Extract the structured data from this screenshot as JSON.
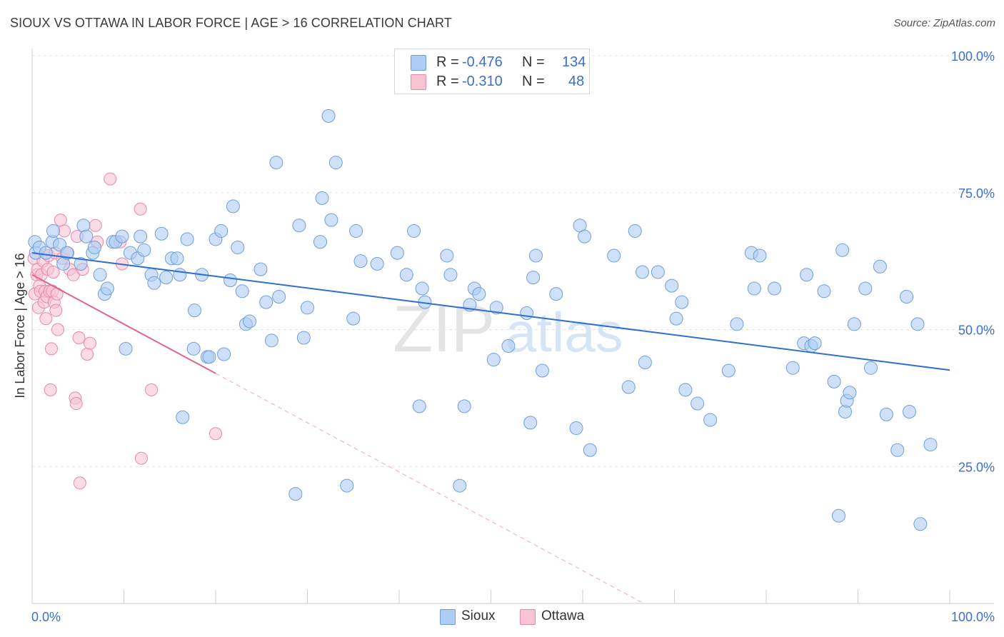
{
  "title": "SIOUX VS OTTAWA IN LABOR FORCE | AGE > 16 CORRELATION CHART",
  "source": "Source: ZipAtlas.com",
  "watermark": {
    "zip": "ZIP",
    "atlas": "atlas"
  },
  "legend": {
    "rows": [
      {
        "r_label": "R =",
        "r_value": "-0.476",
        "n_label": "N =",
        "n_value": "134",
        "color": "#aecdf4",
        "border": "#6f9fd8"
      },
      {
        "r_label": "R =",
        "r_value": "-0.310",
        "n_label": "N =",
        "n_value": "48",
        "color": "#f8c3d3",
        "border": "#e58aa8"
      }
    ]
  },
  "bottom_legend": [
    {
      "label": "Sioux",
      "color": "#aecdf4",
      "border": "#6f9fd8"
    },
    {
      "label": "Ottawa",
      "color": "#f8c3d3",
      "border": "#e58aa8"
    }
  ],
  "chart_data": {
    "type": "scatter",
    "title": "SIOUX VS OTTAWA IN LABOR FORCE | AGE > 16 CORRELATION CHART",
    "xlabel": "",
    "ylabel": "In Labor Force | Age > 16",
    "xlim": [
      0,
      100
    ],
    "ylim": [
      0,
      100
    ],
    "x_tick_labels": [
      "0.0%",
      "100.0%"
    ],
    "y_ticks": [
      25,
      50,
      75,
      100
    ],
    "y_tick_labels": [
      "25.0%",
      "50.0%",
      "75.0%",
      "100.0%"
    ],
    "grid": true,
    "legend_position": "top-center",
    "series": [
      {
        "name": "Sioux",
        "color": "#aecdf4",
        "stroke": "#6f9fd8",
        "trend": {
          "x0": 0,
          "y0": 64.0,
          "x1": 100,
          "y1": 42.6,
          "color": "#2e6fd0"
        },
        "points": [
          [
            0.3,
            66
          ],
          [
            0.4,
            64
          ],
          [
            0.8,
            65
          ],
          [
            1.5,
            64
          ],
          [
            2.2,
            66
          ],
          [
            2.3,
            68
          ],
          [
            3.0,
            65.5
          ],
          [
            3.4,
            62
          ],
          [
            3.8,
            64
          ],
          [
            5.3,
            62
          ],
          [
            5.6,
            69
          ],
          [
            5.9,
            67
          ],
          [
            6.6,
            64
          ],
          [
            6.8,
            65
          ],
          [
            7.4,
            60
          ],
          [
            7.9,
            56.5
          ],
          [
            8.2,
            57.5
          ],
          [
            8.8,
            66
          ],
          [
            9.1,
            66
          ],
          [
            9.8,
            67
          ],
          [
            10.2,
            46.5
          ],
          [
            10.7,
            64
          ],
          [
            11.5,
            63
          ],
          [
            11.8,
            67
          ],
          [
            12.2,
            64.5
          ],
          [
            13.0,
            60
          ],
          [
            13.3,
            58.5
          ],
          [
            14.1,
            67.5
          ],
          [
            14.6,
            59.5
          ],
          [
            15.2,
            63
          ],
          [
            15.8,
            63
          ],
          [
            16.1,
            60
          ],
          [
            16.4,
            34
          ],
          [
            16.9,
            66.5
          ],
          [
            17.7,
            53.5
          ],
          [
            17.6,
            46.5
          ],
          [
            18.5,
            60
          ],
          [
            19.1,
            45
          ],
          [
            19.3,
            45
          ],
          [
            20.0,
            66.5
          ],
          [
            20.6,
            68
          ],
          [
            20.9,
            45.5
          ],
          [
            21.6,
            59
          ],
          [
            21.9,
            72.5
          ],
          [
            22.4,
            65
          ],
          [
            22.9,
            57
          ],
          [
            23.3,
            51
          ],
          [
            23.7,
            51.5
          ],
          [
            24.9,
            61
          ],
          [
            25.5,
            55
          ],
          [
            26.1,
            48
          ],
          [
            26.6,
            80.5
          ],
          [
            26.9,
            56
          ],
          [
            28.7,
            20
          ],
          [
            29.1,
            69
          ],
          [
            29.6,
            48.5
          ],
          [
            30.0,
            54
          ],
          [
            31.4,
            66
          ],
          [
            31.6,
            74
          ],
          [
            32.3,
            89
          ],
          [
            32.6,
            70
          ],
          [
            33.1,
            80.5
          ],
          [
            34.3,
            21.5
          ],
          [
            35.0,
            52
          ],
          [
            35.3,
            68
          ],
          [
            35.8,
            62.5
          ],
          [
            37.6,
            62
          ],
          [
            39.8,
            64
          ],
          [
            40.8,
            60
          ],
          [
            41.6,
            68
          ],
          [
            42.2,
            36
          ],
          [
            42.5,
            57.5
          ],
          [
            42.8,
            55
          ],
          [
            45.2,
            63.5
          ],
          [
            45.6,
            60
          ],
          [
            46.6,
            21.5
          ],
          [
            47.1,
            36
          ],
          [
            47.7,
            54.5
          ],
          [
            48.2,
            57.5
          ],
          [
            48.7,
            56.5
          ],
          [
            50.3,
            44.5
          ],
          [
            50.6,
            54
          ],
          [
            51.9,
            47
          ],
          [
            53.9,
            53
          ],
          [
            54.3,
            33
          ],
          [
            54.6,
            59.5
          ],
          [
            54.9,
            63.5
          ],
          [
            55.6,
            42.5
          ],
          [
            57.1,
            56.5
          ],
          [
            59.3,
            32
          ],
          [
            59.7,
            69
          ],
          [
            60.2,
            67
          ],
          [
            60.8,
            28
          ],
          [
            63.4,
            63.5
          ],
          [
            65.0,
            39.5
          ],
          [
            65.7,
            68
          ],
          [
            66.5,
            60.5
          ],
          [
            66.8,
            44
          ],
          [
            68.2,
            60.5
          ],
          [
            69.7,
            58
          ],
          [
            70.2,
            52
          ],
          [
            70.8,
            55
          ],
          [
            71.2,
            39
          ],
          [
            72.5,
            36.5
          ],
          [
            73.9,
            33.5
          ],
          [
            75.9,
            42.5
          ],
          [
            76.8,
            51
          ],
          [
            78.4,
            64
          ],
          [
            78.7,
            57.5
          ],
          [
            79.3,
            63.5
          ],
          [
            80.9,
            57.5
          ],
          [
            82.9,
            43
          ],
          [
            84.1,
            47.5
          ],
          [
            84.4,
            60
          ],
          [
            84.9,
            47
          ],
          [
            85.3,
            47.5
          ],
          [
            86.3,
            57
          ],
          [
            87.4,
            40.5
          ],
          [
            88.3,
            64.5
          ],
          [
            88.6,
            35
          ],
          [
            88.8,
            37
          ],
          [
            89.1,
            38.5
          ],
          [
            89.6,
            51
          ],
          [
            90.8,
            57.5
          ],
          [
            91.4,
            43
          ],
          [
            92.4,
            61.5
          ],
          [
            93.1,
            34.5
          ],
          [
            94.3,
            28
          ],
          [
            95.3,
            56
          ],
          [
            95.6,
            35
          ],
          [
            96.5,
            51
          ],
          [
            96.8,
            14.5
          ],
          [
            97.9,
            29
          ],
          [
            87.9,
            16
          ]
        ]
      },
      {
        "name": "Ottawa",
        "color": "#f8c3d3",
        "stroke": "#e58aa8",
        "trend": {
          "x0": 0,
          "y0": 60.0,
          "x1": 20,
          "y1": 42.0,
          "color": "#e0648c"
        },
        "trend_extension": {
          "x0": 20,
          "y0": 42.0,
          "x1": 100,
          "y1": -30.0
        },
        "points": [
          [
            0.2,
            63
          ],
          [
            0.3,
            56.5
          ],
          [
            0.5,
            60
          ],
          [
            0.6,
            61
          ],
          [
            0.7,
            54
          ],
          [
            0.8,
            58
          ],
          [
            0.9,
            57
          ],
          [
            1.0,
            60
          ],
          [
            1.2,
            62.5
          ],
          [
            1.3,
            55
          ],
          [
            1.4,
            57
          ],
          [
            1.5,
            52
          ],
          [
            1.6,
            56
          ],
          [
            1.7,
            61
          ],
          [
            1.8,
            63.5
          ],
          [
            1.9,
            57
          ],
          [
            2.0,
            39
          ],
          [
            2.1,
            46.5
          ],
          [
            2.2,
            57
          ],
          [
            2.3,
            60.5
          ],
          [
            2.4,
            55
          ],
          [
            2.5,
            64
          ],
          [
            2.6,
            53.5
          ],
          [
            2.7,
            56.5
          ],
          [
            2.8,
            50
          ],
          [
            3.1,
            70
          ],
          [
            3.3,
            63
          ],
          [
            3.5,
            68
          ],
          [
            3.9,
            64
          ],
          [
            4.1,
            61
          ],
          [
            4.5,
            60
          ],
          [
            4.7,
            37.5
          ],
          [
            4.8,
            36.5
          ],
          [
            4.9,
            67
          ],
          [
            5.1,
            48.5
          ],
          [
            5.2,
            22
          ],
          [
            5.5,
            61
          ],
          [
            6.0,
            45.5
          ],
          [
            6.3,
            47.5
          ],
          [
            6.9,
            69
          ],
          [
            7.1,
            66
          ],
          [
            8.5,
            77.5
          ],
          [
            9.8,
            62
          ],
          [
            9.6,
            66
          ],
          [
            11.8,
            72
          ],
          [
            11.9,
            26.5
          ],
          [
            13.0,
            39
          ],
          [
            20.0,
            31
          ]
        ]
      }
    ]
  }
}
